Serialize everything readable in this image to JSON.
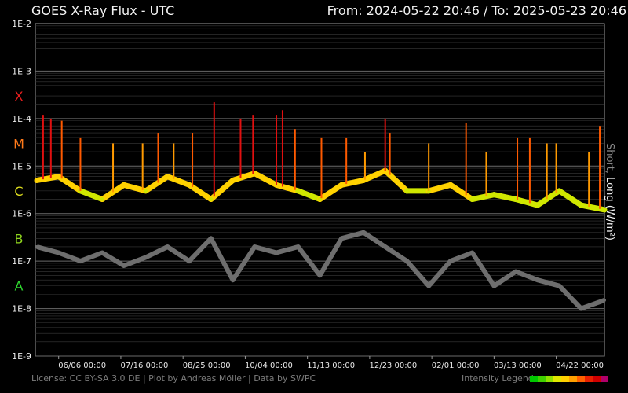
{
  "header": {
    "title": "GOES X-Ray Flux - UTC",
    "range": "From: 2024-05-22 20:46  /  To: 2025-05-23 20:46"
  },
  "side_label": {
    "short": "Short",
    "sep": ", ",
    "long": "Long (W/m²)"
  },
  "footer": "License: CC BY-SA 3.0 DE | Plot by Andreas Möller | Data by SWPC",
  "legend": {
    "label": "Intensity Legend",
    "colors": [
      "#00c800",
      "#40d000",
      "#90e000",
      "#e0e800",
      "#ffd000",
      "#ffa000",
      "#ff6000",
      "#e82000",
      "#d00000",
      "#b0006a"
    ]
  },
  "colors": {
    "short_flux": "#6e6e6e",
    "class_labels": {
      "X": "#e81e1e",
      "M": "#ff7a1a",
      "C": "#dede1e",
      "B": "#8fd61e",
      "A": "#2ed62e"
    }
  },
  "chart_data": {
    "type": "line",
    "y_scale": "log",
    "ylim": [
      1e-09,
      0.01
    ],
    "xlim": [
      "2024-05-22",
      "2025-05-23"
    ],
    "y_ticks": [
      "1E-2",
      "1E-3",
      "1E-4",
      "1E-5",
      "1E-6",
      "1E-7",
      "1E-8",
      "1E-9"
    ],
    "class_labels": [
      {
        "label": "X",
        "at": 0.0003
      },
      {
        "label": "M",
        "at": 3e-05
      },
      {
        "label": "C",
        "at": 3e-06
      },
      {
        "label": "B",
        "at": 3e-07
      },
      {
        "label": "A",
        "at": 3e-08
      }
    ],
    "x_ticks": [
      {
        "date": "2024-06-06",
        "label": "06/06 00:00"
      },
      {
        "date": "2024-07-16",
        "label": "07/16 00:00"
      },
      {
        "date": "2024-08-25",
        "label": "08/25 00:00"
      },
      {
        "date": "2024-10-04",
        "label": "10/04 00:00"
      },
      {
        "date": "2024-11-13",
        "label": "11/13 00:00"
      },
      {
        "date": "2024-12-23",
        "label": "12/23 00:00"
      },
      {
        "date": "2025-02-01",
        "label": "02/01 00:00"
      },
      {
        "date": "2025-03-13",
        "label": "03/13 00:00"
      },
      {
        "date": "2025-04-22",
        "label": "04/22 00:00"
      }
    ],
    "series": [
      {
        "name": "Short",
        "x": [
          "2024-05-23",
          "2024-06-06",
          "2024-06-20",
          "2024-07-04",
          "2024-07-18",
          "2024-08-01",
          "2024-08-15",
          "2024-08-29",
          "2024-09-12",
          "2024-09-26",
          "2024-10-10",
          "2024-10-24",
          "2024-11-07",
          "2024-11-21",
          "2024-12-05",
          "2024-12-19",
          "2025-01-02",
          "2025-01-16",
          "2025-01-30",
          "2025-02-13",
          "2025-02-27",
          "2025-03-13",
          "2025-03-27",
          "2025-04-10",
          "2025-04-24",
          "2025-05-08",
          "2025-05-23"
        ],
        "y": [
          2e-07,
          1.5e-07,
          1e-07,
          1.5e-07,
          8e-08,
          1.2e-07,
          2e-07,
          1e-07,
          3e-07,
          4e-08,
          2e-07,
          1.5e-07,
          2e-07,
          5e-08,
          3e-07,
          4e-07,
          2e-07,
          1e-07,
          3e-08,
          1e-07,
          1.5e-07,
          3e-08,
          6e-08,
          4e-08,
          3e-08,
          1e-08,
          1.5e-08
        ]
      },
      {
        "name": "Long",
        "x": [
          "2024-05-23",
          "2024-06-06",
          "2024-06-20",
          "2024-07-04",
          "2024-07-18",
          "2024-08-01",
          "2024-08-15",
          "2024-08-29",
          "2024-09-12",
          "2024-09-26",
          "2024-10-10",
          "2024-10-24",
          "2024-11-07",
          "2024-11-21",
          "2024-12-05",
          "2024-12-19",
          "2025-01-02",
          "2025-01-16",
          "2025-01-30",
          "2025-02-13",
          "2025-02-27",
          "2025-03-13",
          "2025-03-27",
          "2025-04-10",
          "2025-04-24",
          "2025-05-08",
          "2025-05-23"
        ],
        "y": [
          5e-06,
          6e-06,
          3e-06,
          2e-06,
          4e-06,
          3e-06,
          6e-06,
          4e-06,
          2e-06,
          5e-06,
          7e-06,
          4e-06,
          3e-06,
          2e-06,
          4e-06,
          5e-06,
          8e-06,
          3e-06,
          3e-06,
          4e-06,
          2e-06,
          2.5e-06,
          2e-06,
          1.5e-06,
          3e-06,
          1.5e-06,
          1.2e-06
        ]
      }
    ],
    "flares": [
      {
        "date": "2024-05-27",
        "flux": 0.00012
      },
      {
        "date": "2024-06-01",
        "flux": 0.0001
      },
      {
        "date": "2024-06-08",
        "flux": 9e-05
      },
      {
        "date": "2024-06-20",
        "flux": 4e-05
      },
      {
        "date": "2024-07-11",
        "flux": 3e-05
      },
      {
        "date": "2024-07-30",
        "flux": 3e-05
      },
      {
        "date": "2024-08-09",
        "flux": 5e-05
      },
      {
        "date": "2024-08-19",
        "flux": 3e-05
      },
      {
        "date": "2024-08-31",
        "flux": 5e-05
      },
      {
        "date": "2024-09-14",
        "flux": 0.00022
      },
      {
        "date": "2024-10-01",
        "flux": 0.0001
      },
      {
        "date": "2024-10-09",
        "flux": 0.00012
      },
      {
        "date": "2024-10-24",
        "flux": 0.00012
      },
      {
        "date": "2024-10-28",
        "flux": 0.00015
      },
      {
        "date": "2024-11-05",
        "flux": 6e-05
      },
      {
        "date": "2024-11-22",
        "flux": 4e-05
      },
      {
        "date": "2024-12-08",
        "flux": 4e-05
      },
      {
        "date": "2024-12-20",
        "flux": 2e-05
      },
      {
        "date": "2025-01-02",
        "flux": 0.0001
      },
      {
        "date": "2025-01-05",
        "flux": 5e-05
      },
      {
        "date": "2025-01-30",
        "flux": 3e-05
      },
      {
        "date": "2025-02-23",
        "flux": 8e-05
      },
      {
        "date": "2025-03-08",
        "flux": 2e-05
      },
      {
        "date": "2025-03-28",
        "flux": 4e-05
      },
      {
        "date": "2025-04-05",
        "flux": 4e-05
      },
      {
        "date": "2025-04-16",
        "flux": 3e-05
      },
      {
        "date": "2025-04-22",
        "flux": 3e-05
      },
      {
        "date": "2025-05-13",
        "flux": 2e-05
      },
      {
        "date": "2025-05-20",
        "flux": 7e-05
      }
    ]
  }
}
